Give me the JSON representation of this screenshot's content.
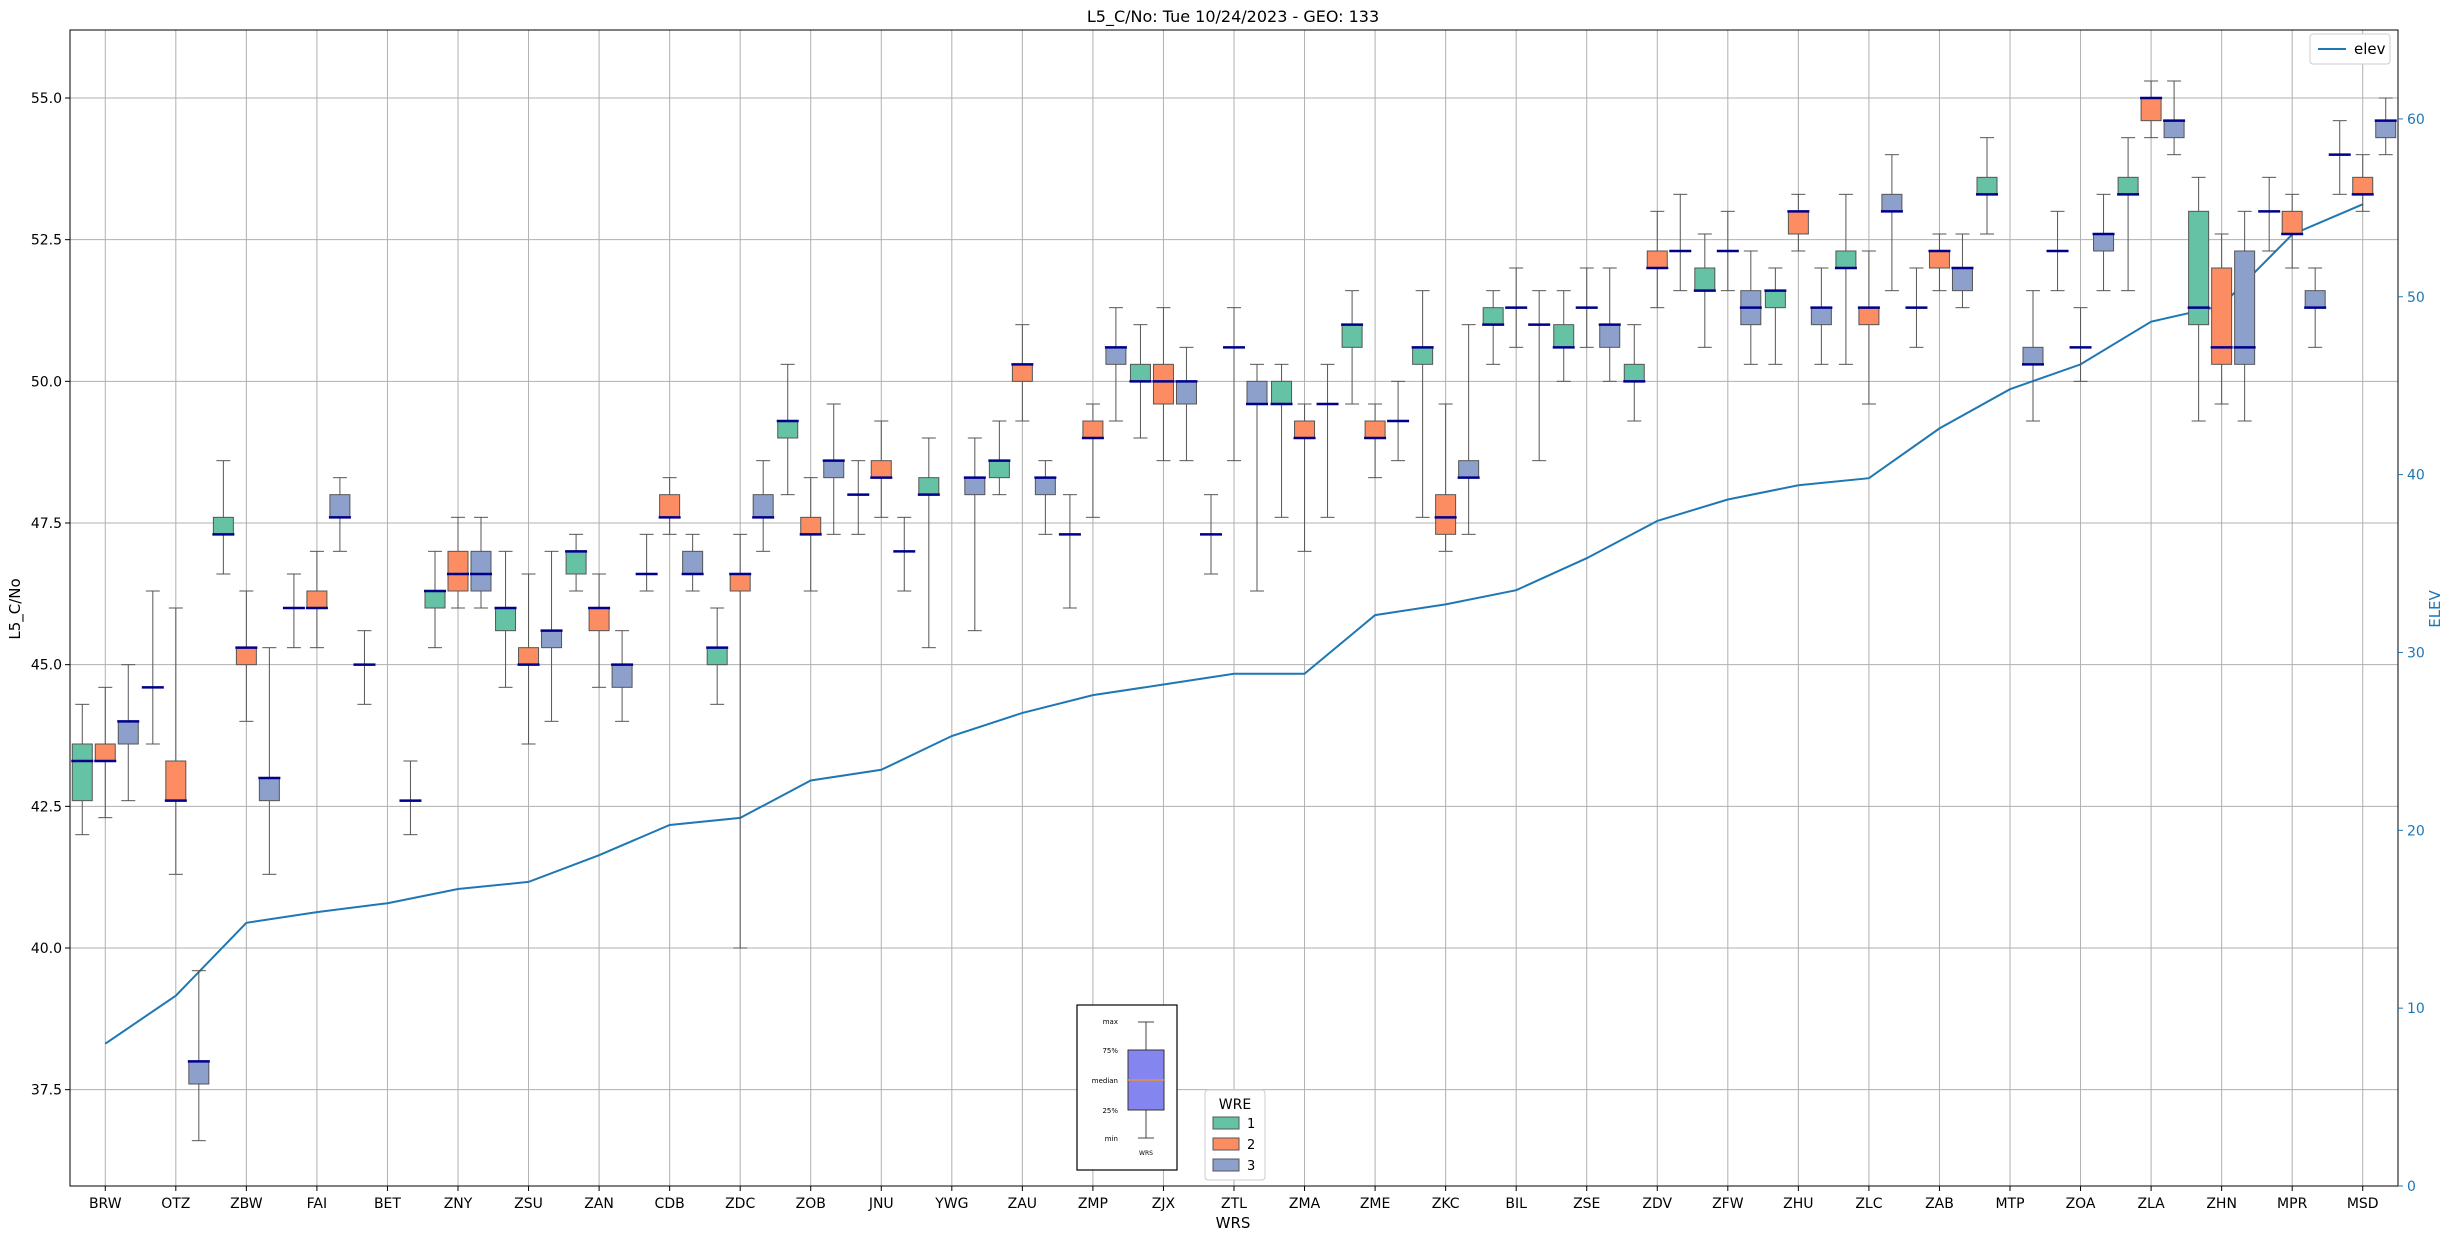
{
  "chart_data": {
    "type": "box",
    "title": "L5_C/No: Tue 10/24/2023 - GEO: 133",
    "xlabel": "WRS",
    "ylabel": "L5_C/No",
    "y2label": "ELEV",
    "ylim": [
      35.8,
      56.2
    ],
    "y2lim": [
      0,
      65
    ],
    "yticks": [
      "37.5",
      "40.0",
      "42.5",
      "45.0",
      "47.5",
      "50.0",
      "52.5",
      "55.0"
    ],
    "y2ticks": [
      "0",
      "10",
      "20",
      "30",
      "40",
      "50",
      "60"
    ],
    "grid": true,
    "categories": [
      "BRW",
      "OTZ",
      "ZBW",
      "FAI",
      "BET",
      "ZNY",
      "ZSU",
      "ZAN",
      "CDB",
      "ZDC",
      "ZOB",
      "JNU",
      "YWG",
      "ZAU",
      "ZMP",
      "ZJX",
      "ZTL",
      "ZMA",
      "ZME",
      "ZKC",
      "BIL",
      "ZSE",
      "ZDV",
      "ZFW",
      "ZHU",
      "ZLC",
      "ZAB",
      "MTP",
      "ZOA",
      "ZLA",
      "ZHN",
      "MPR",
      "MSD"
    ],
    "wre_colors": {
      "1": "#66c2a5",
      "2": "#fc8d62",
      "3": "#8da0cb"
    },
    "median_color": "#00008b",
    "elev_color": "#1f77b4",
    "legend_elev": {
      "label": "elev",
      "placement": "top-right"
    },
    "legend_wre": {
      "title": "WRE",
      "items": [
        "1",
        "2",
        "3"
      ],
      "placement": "bottom-center"
    },
    "key_labels": [
      "max",
      "75%",
      "median",
      "25%",
      "min",
      "WRS"
    ],
    "elev": [
      8,
      10.7,
      14.8,
      15.4,
      15.9,
      16.7,
      17.1,
      18.6,
      20.3,
      20.7,
      22.8,
      23.4,
      25.3,
      26.6,
      27.6,
      28.2,
      28.8,
      28.8,
      32.1,
      32.7,
      33.5,
      35.3,
      37.4,
      38.6,
      39.4,
      39.8,
      42.6,
      44.8,
      46.2,
      48.6,
      49.5,
      53.5,
      55.2
    ],
    "boxes": [
      {
        "wrs": "BRW",
        "wre": 1,
        "min": 42,
        "q1": 42.6,
        "median": 43.3,
        "q3": 43.6,
        "max": 44.3
      },
      {
        "wrs": "BRW",
        "wre": 2,
        "min": 42.3,
        "q1": 43.3,
        "median": 43.3,
        "q3": 43.6,
        "max": 44.6
      },
      {
        "wrs": "BRW",
        "wre": 3,
        "min": 42.6,
        "q1": 43.6,
        "median": 44,
        "q3": 44,
        "max": 45
      },
      {
        "wrs": "OTZ",
        "wre": 1,
        "min": 43.6,
        "q1": 44.6,
        "median": 44.6,
        "q3": 44.6,
        "max": 46.3
      },
      {
        "wrs": "OTZ",
        "wre": 2,
        "min": 41.3,
        "q1": 42.6,
        "median": 42.6,
        "q3": 43.3,
        "max": 46
      },
      {
        "wrs": "OTZ",
        "wre": 3,
        "min": 36.6,
        "q1": 37.6,
        "median": 38,
        "q3": 38,
        "max": 39.6
      },
      {
        "wrs": "ZBW",
        "wre": 1,
        "min": 46.6,
        "q1": 47.3,
        "median": 47.3,
        "q3": 47.6,
        "max": 48.6
      },
      {
        "wrs": "ZBW",
        "wre": 2,
        "min": 44,
        "q1": 45,
        "median": 45.3,
        "q3": 45.3,
        "max": 46.3
      },
      {
        "wrs": "ZBW",
        "wre": 3,
        "min": 41.3,
        "q1": 42.6,
        "median": 43,
        "q3": 43,
        "max": 45.3
      },
      {
        "wrs": "FAI",
        "wre": 1,
        "min": 45.3,
        "q1": 46,
        "median": 46,
        "q3": 46,
        "max": 46.6
      },
      {
        "wrs": "FAI",
        "wre": 2,
        "min": 45.3,
        "q1": 46,
        "median": 46,
        "q3": 46.3,
        "max": 47
      },
      {
        "wrs": "FAI",
        "wre": 3,
        "min": 47,
        "q1": 47.6,
        "median": 47.6,
        "q3": 48,
        "max": 48.3
      },
      {
        "wrs": "BET",
        "wre": 1,
        "min": 44.3,
        "q1": 45,
        "median": 45,
        "q3": 45,
        "max": 45.6
      },
      {
        "wrs": "BET",
        "wre": 3,
        "min": 42,
        "q1": 42.6,
        "median": 42.6,
        "q3": 42.6,
        "max": 43.3
      },
      {
        "wrs": "ZNY",
        "wre": 1,
        "min": 45.3,
        "q1": 46,
        "median": 46.3,
        "q3": 46.3,
        "max": 47
      },
      {
        "wrs": "ZNY",
        "wre": 2,
        "min": 46,
        "q1": 46.3,
        "median": 46.6,
        "q3": 47,
        "max": 47.6
      },
      {
        "wrs": "ZNY",
        "wre": 3,
        "min": 46,
        "q1": 46.3,
        "median": 46.6,
        "q3": 47,
        "max": 47.6
      },
      {
        "wrs": "ZSU",
        "wre": 1,
        "min": 44.6,
        "q1": 45.6,
        "median": 46,
        "q3": 46,
        "max": 47
      },
      {
        "wrs": "ZSU",
        "wre": 2,
        "min": 43.6,
        "q1": 45,
        "median": 45,
        "q3": 45.3,
        "max": 46.6
      },
      {
        "wrs": "ZSU",
        "wre": 3,
        "min": 44,
        "q1": 45.3,
        "median": 45.6,
        "q3": 45.6,
        "max": 47
      },
      {
        "wrs": "ZAN",
        "wre": 1,
        "min": 46.3,
        "q1": 46.6,
        "median": 47,
        "q3": 47,
        "max": 47.3
      },
      {
        "wrs": "ZAN",
        "wre": 2,
        "min": 44.6,
        "q1": 45.6,
        "median": 46,
        "q3": 46,
        "max": 46.6
      },
      {
        "wrs": "ZAN",
        "wre": 3,
        "min": 44,
        "q1": 44.6,
        "median": 45,
        "q3": 45,
        "max": 45.6
      },
      {
        "wrs": "CDB",
        "wre": 1,
        "min": 46.3,
        "q1": 46.6,
        "median": 46.6,
        "q3": 46.6,
        "max": 47.3
      },
      {
        "wrs": "CDB",
        "wre": 2,
        "min": 47.3,
        "q1": 47.6,
        "median": 47.6,
        "q3": 48,
        "max": 48.3
      },
      {
        "wrs": "CDB",
        "wre": 3,
        "min": 46.3,
        "q1": 46.6,
        "median": 46.6,
        "q3": 47,
        "max": 47.3
      },
      {
        "wrs": "ZDC",
        "wre": 1,
        "min": 44.3,
        "q1": 45,
        "median": 45.3,
        "q3": 45.3,
        "max": 46
      },
      {
        "wrs": "ZDC",
        "wre": 2,
        "min": 40,
        "q1": 46.3,
        "median": 46.6,
        "q3": 46.6,
        "max": 47.3
      },
      {
        "wrs": "ZDC",
        "wre": 3,
        "min": 47,
        "q1": 47.6,
        "median": 47.6,
        "q3": 48,
        "max": 48.6
      },
      {
        "wrs": "ZOB",
        "wre": 1,
        "min": 48,
        "q1": 49,
        "median": 49.3,
        "q3": 49.3,
        "max": 50.3
      },
      {
        "wrs": "ZOB",
        "wre": 2,
        "min": 46.3,
        "q1": 47.3,
        "median": 47.3,
        "q3": 47.6,
        "max": 48.3
      },
      {
        "wrs": "ZOB",
        "wre": 3,
        "min": 47.3,
        "q1": 48.3,
        "median": 48.6,
        "q3": 48.6,
        "max": 49.6
      },
      {
        "wrs": "JNU",
        "wre": 1,
        "min": 47.3,
        "q1": 48,
        "median": 48,
        "q3": 48,
        "max": 48.6
      },
      {
        "wrs": "JNU",
        "wre": 2,
        "min": 47.6,
        "q1": 48.3,
        "median": 48.3,
        "q3": 48.6,
        "max": 49.3
      },
      {
        "wrs": "JNU",
        "wre": 3,
        "min": 46.3,
        "q1": 47,
        "median": 47,
        "q3": 47,
        "max": 47.6
      },
      {
        "wrs": "YWG",
        "wre": 1,
        "min": 45.3,
        "q1": 48,
        "median": 48,
        "q3": 48.3,
        "max": 49
      },
      {
        "wrs": "YWG",
        "wre": 3,
        "min": 45.6,
        "q1": 48,
        "median": 48.3,
        "q3": 48.3,
        "max": 49
      },
      {
        "wrs": "ZAU",
        "wre": 1,
        "min": 48,
        "q1": 48.3,
        "median": 48.6,
        "q3": 48.6,
        "max": 49.3
      },
      {
        "wrs": "ZAU",
        "wre": 2,
        "min": 49.3,
        "q1": 50,
        "median": 50.3,
        "q3": 50.3,
        "max": 51
      },
      {
        "wrs": "ZAU",
        "wre": 3,
        "min": 47.3,
        "q1": 48,
        "median": 48.3,
        "q3": 48.3,
        "max": 48.6
      },
      {
        "wrs": "ZMP",
        "wre": 1,
        "min": 46,
        "q1": 47.3,
        "median": 47.3,
        "q3": 47.3,
        "max": 48
      },
      {
        "wrs": "ZMP",
        "wre": 2,
        "min": 47.6,
        "q1": 49,
        "median": 49,
        "q3": 49.3,
        "max": 49.6
      },
      {
        "wrs": "ZMP",
        "wre": 3,
        "min": 49.3,
        "q1": 50.3,
        "median": 50.6,
        "q3": 50.6,
        "max": 51.3
      },
      {
        "wrs": "ZJX",
        "wre": 1,
        "min": 49,
        "q1": 50,
        "median": 50,
        "q3": 50.3,
        "max": 51
      },
      {
        "wrs": "ZJX",
        "wre": 2,
        "min": 48.6,
        "q1": 49.6,
        "median": 50,
        "q3": 50.3,
        "max": 51.3
      },
      {
        "wrs": "ZJX",
        "wre": 3,
        "min": 48.6,
        "q1": 49.6,
        "median": 50,
        "q3": 50,
        "max": 50.6
      },
      {
        "wrs": "ZTL",
        "wre": 1,
        "min": 46.6,
        "q1": 47.3,
        "median": 47.3,
        "q3": 47.3,
        "max": 48
      },
      {
        "wrs": "ZTL",
        "wre": 2,
        "min": 48.6,
        "q1": 50.6,
        "median": 50.6,
        "q3": 50.6,
        "max": 51.3
      },
      {
        "wrs": "ZTL",
        "wre": 3,
        "min": 46.3,
        "q1": 49.6,
        "median": 49.6,
        "q3": 50,
        "max": 50.3
      },
      {
        "wrs": "ZMA",
        "wre": 1,
        "min": 47.6,
        "q1": 49.6,
        "median": 49.6,
        "q3": 50,
        "max": 50.3
      },
      {
        "wrs": "ZMA",
        "wre": 2,
        "min": 47,
        "q1": 49,
        "median": 49,
        "q3": 49.3,
        "max": 49.6
      },
      {
        "wrs": "ZMA",
        "wre": 3,
        "min": 47.6,
        "q1": 49.6,
        "median": 49.6,
        "q3": 49.6,
        "max": 50.3
      },
      {
        "wrs": "ZME",
        "wre": 1,
        "min": 49.6,
        "q1": 50.6,
        "median": 51,
        "q3": 51,
        "max": 51.6
      },
      {
        "wrs": "ZME",
        "wre": 2,
        "min": 48.3,
        "q1": 49,
        "median": 49,
        "q3": 49.3,
        "max": 49.6
      },
      {
        "wrs": "ZME",
        "wre": 3,
        "min": 48.6,
        "q1": 49.3,
        "median": 49.3,
        "q3": 49.3,
        "max": 50
      },
      {
        "wrs": "ZKC",
        "wre": 1,
        "min": 47.6,
        "q1": 50.3,
        "median": 50.6,
        "q3": 50.6,
        "max": 51.6
      },
      {
        "wrs": "ZKC",
        "wre": 2,
        "min": 47,
        "q1": 47.3,
        "median": 47.6,
        "q3": 48,
        "max": 49.6
      },
      {
        "wrs": "ZKC",
        "wre": 3,
        "min": 47.3,
        "q1": 48.3,
        "median": 48.3,
        "q3": 48.6,
        "max": 51
      },
      {
        "wrs": "BIL",
        "wre": 1,
        "min": 50.3,
        "q1": 51,
        "median": 51,
        "q3": 51.3,
        "max": 51.6
      },
      {
        "wrs": "BIL",
        "wre": 2,
        "min": 50.6,
        "q1": 51.3,
        "median": 51.3,
        "q3": 51.3,
        "max": 52
      },
      {
        "wrs": "BIL",
        "wre": 3,
        "min": 48.6,
        "q1": 51,
        "median": 51,
        "q3": 51,
        "max": 51.6
      },
      {
        "wrs": "ZSE",
        "wre": 1,
        "min": 50,
        "q1": 50.6,
        "median": 50.6,
        "q3": 51,
        "max": 51.6
      },
      {
        "wrs": "ZSE",
        "wre": 2,
        "min": 50.6,
        "q1": 51.3,
        "median": 51.3,
        "q3": 51.3,
        "max": 52
      },
      {
        "wrs": "ZSE",
        "wre": 3,
        "min": 50,
        "q1": 50.6,
        "median": 51,
        "q3": 51,
        "max": 52
      },
      {
        "wrs": "ZDV",
        "wre": 1,
        "min": 49.3,
        "q1": 50,
        "median": 50,
        "q3": 50.3,
        "max": 51
      },
      {
        "wrs": "ZDV",
        "wre": 2,
        "min": 51.3,
        "q1": 52,
        "median": 52,
        "q3": 52.3,
        "max": 53
      },
      {
        "wrs": "ZDV",
        "wre": 3,
        "min": 51.6,
        "q1": 52.3,
        "median": 52.3,
        "q3": 52.3,
        "max": 53.3
      },
      {
        "wrs": "ZFW",
        "wre": 1,
        "min": 50.6,
        "q1": 51.6,
        "median": 51.6,
        "q3": 52,
        "max": 52.6
      },
      {
        "wrs": "ZFW",
        "wre": 2,
        "min": 51.6,
        "q1": 52.3,
        "median": 52.3,
        "q3": 52.3,
        "max": 53
      },
      {
        "wrs": "ZFW",
        "wre": 3,
        "min": 50.3,
        "q1": 51,
        "median": 51.3,
        "q3": 51.6,
        "max": 52.3
      },
      {
        "wrs": "ZHU",
        "wre": 1,
        "min": 50.3,
        "q1": 51.3,
        "median": 51.6,
        "q3": 51.6,
        "max": 52
      },
      {
        "wrs": "ZHU",
        "wre": 2,
        "min": 52.3,
        "q1": 52.6,
        "median": 53,
        "q3": 53,
        "max": 53.3
      },
      {
        "wrs": "ZHU",
        "wre": 3,
        "min": 50.3,
        "q1": 51,
        "median": 51.3,
        "q3": 51.3,
        "max": 52
      },
      {
        "wrs": "ZLC",
        "wre": 1,
        "min": 50.3,
        "q1": 52,
        "median": 52,
        "q3": 52.3,
        "max": 53.3
      },
      {
        "wrs": "ZLC",
        "wre": 2,
        "min": 49.6,
        "q1": 51,
        "median": 51.3,
        "q3": 51.3,
        "max": 52.3
      },
      {
        "wrs": "ZLC",
        "wre": 3,
        "min": 51.6,
        "q1": 53,
        "median": 53,
        "q3": 53.3,
        "max": 54
      },
      {
        "wrs": "ZAB",
        "wre": 1,
        "min": 50.6,
        "q1": 51.3,
        "median": 51.3,
        "q3": 51.3,
        "max": 52
      },
      {
        "wrs": "ZAB",
        "wre": 2,
        "min": 51.6,
        "q1": 52,
        "median": 52.3,
        "q3": 52.3,
        "max": 52.6
      },
      {
        "wrs": "ZAB",
        "wre": 3,
        "min": 51.3,
        "q1": 51.6,
        "median": 52,
        "q3": 52,
        "max": 52.6
      },
      {
        "wrs": "MTP",
        "wre": 1,
        "min": 52.6,
        "q1": 53.3,
        "median": 53.3,
        "q3": 53.6,
        "max": 54.3
      },
      {
        "wrs": "MTP",
        "wre": 3,
        "min": 49.3,
        "q1": 50.3,
        "median": 50.3,
        "q3": 50.6,
        "max": 51.6
      },
      {
        "wrs": "ZOA",
        "wre": 1,
        "min": 51.6,
        "q1": 52.3,
        "median": 52.3,
        "q3": 52.3,
        "max": 53
      },
      {
        "wrs": "ZOA",
        "wre": 2,
        "min": 50,
        "q1": 50.6,
        "median": 50.6,
        "q3": 50.6,
        "max": 51.3
      },
      {
        "wrs": "ZOA",
        "wre": 3,
        "min": 51.6,
        "q1": 52.3,
        "median": 52.6,
        "q3": 52.6,
        "max": 53.3
      },
      {
        "wrs": "ZLA",
        "wre": 1,
        "min": 51.6,
        "q1": 53.3,
        "median": 53.3,
        "q3": 53.6,
        "max": 54.3
      },
      {
        "wrs": "ZLA",
        "wre": 2,
        "min": 54.3,
        "q1": 54.6,
        "median": 55,
        "q3": 55,
        "max": 55.3
      },
      {
        "wrs": "ZLA",
        "wre": 3,
        "min": 54,
        "q1": 54.3,
        "median": 54.6,
        "q3": 54.6,
        "max": 55.3
      },
      {
        "wrs": "ZHN",
        "wre": 1,
        "min": 49.3,
        "q1": 51,
        "median": 51.3,
        "q3": 53,
        "max": 53.6
      },
      {
        "wrs": "ZHN",
        "wre": 2,
        "min": 49.6,
        "q1": 50.3,
        "median": 50.6,
        "q3": 52,
        "max": 52.6
      },
      {
        "wrs": "ZHN",
        "wre": 3,
        "min": 49.3,
        "q1": 50.3,
        "median": 50.6,
        "q3": 52.3,
        "max": 53
      },
      {
        "wrs": "MPR",
        "wre": 1,
        "min": 52.3,
        "q1": 53,
        "median": 53,
        "q3": 53,
        "max": 53.6
      },
      {
        "wrs": "MPR",
        "wre": 2,
        "min": 52,
        "q1": 52.6,
        "median": 52.6,
        "q3": 53,
        "max": 53.3
      },
      {
        "wrs": "MPR",
        "wre": 3,
        "min": 50.6,
        "q1": 51.3,
        "median": 51.3,
        "q3": 51.6,
        "max": 52
      },
      {
        "wrs": "MSD",
        "wre": 1,
        "min": 53.3,
        "q1": 54,
        "median": 54,
        "q3": 54,
        "max": 54.6
      },
      {
        "wrs": "MSD",
        "wre": 2,
        "min": 53,
        "q1": 53.3,
        "median": 53.3,
        "q3": 53.6,
        "max": 54
      },
      {
        "wrs": "MSD",
        "wre": 3,
        "min": 54,
        "q1": 54.3,
        "median": 54.6,
        "q3": 54.6,
        "max": 55
      }
    ]
  }
}
